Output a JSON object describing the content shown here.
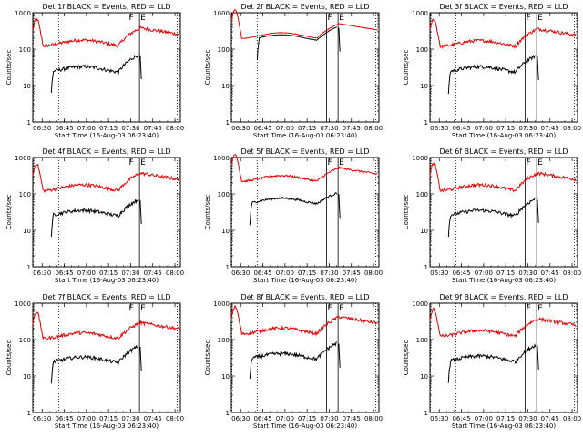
{
  "chart_data": {
    "type": "line",
    "layout": "3x3 grid",
    "ylabel": "Counts/sec",
    "xlabel": "Start Time (16-Aug-03 06:23:40)",
    "yscale": "log",
    "ylim": [
      1,
      1000
    ],
    "y_tick_labels": [
      "1",
      "10",
      "100",
      "1000"
    ],
    "x_tick_labels": [
      "06:30",
      "06:45",
      "07:00",
      "07:15",
      "07:30",
      "07:45",
      "08:00"
    ],
    "x_tick_minutes": [
      6.33,
      21.33,
      36.33,
      51.33,
      66.33,
      81.33,
      96.33
    ],
    "xlim_minutes": [
      0,
      100
    ],
    "time_range": [
      "06:23:40",
      "08:03:40"
    ],
    "legend": {
      "black": "Events",
      "red": "LLD"
    },
    "colors": {
      "events": "#000000",
      "lld": "#e00000",
      "axes": "#000000"
    },
    "markers": [
      {
        "label": "F",
        "minute": 64.5,
        "style": "solid"
      },
      {
        "label": "E",
        "minute": 72.3,
        "style": "solid"
      },
      {
        "label": "",
        "minute": 0.3,
        "style": "dotted"
      },
      {
        "label": "",
        "minute": 17.5,
        "style": "dotted"
      },
      {
        "label": "",
        "minute": 97.8,
        "style": "dotted"
      }
    ],
    "panels": [
      {
        "title": "Det 1f BLACK = Events, RED = LLD",
        "lld_base": 150,
        "events_base": 28,
        "lld_peak": 380,
        "events_peak": 75,
        "noise": 0.1,
        "smooth": false
      },
      {
        "title": "Det 2f BLACK = Events, RED = LLD",
        "lld_base": 240,
        "events_base": 210,
        "lld_peak": 500,
        "events_peak": 430,
        "noise": 0.02,
        "smooth": true
      },
      {
        "title": "Det 3f BLACK = Events, RED = LLD",
        "lld_base": 145,
        "events_base": 28,
        "lld_peak": 360,
        "events_peak": 70,
        "noise": 0.1,
        "smooth": false
      },
      {
        "title": "Det 4f BLACK = Events, RED = LLD",
        "lld_base": 150,
        "events_base": 30,
        "lld_peak": 370,
        "events_peak": 75,
        "noise": 0.1,
        "smooth": false
      },
      {
        "title": "Det 5f BLACK = Events, RED = LLD",
        "lld_base": 270,
        "events_base": 65,
        "lld_peak": 520,
        "events_peak": 110,
        "noise": 0.06,
        "smooth": false
      },
      {
        "title": "Det 6f BLACK = Events, RED = LLD",
        "lld_base": 150,
        "events_base": 30,
        "lld_peak": 370,
        "events_peak": 80,
        "noise": 0.1,
        "smooth": false
      },
      {
        "title": "Det 7f BLACK = Events, RED = LLD",
        "lld_base": 130,
        "events_base": 28,
        "lld_peak": 290,
        "events_peak": 70,
        "noise": 0.1,
        "smooth": false
      },
      {
        "title": "Det 8f BLACK = Events, RED = LLD",
        "lld_base": 175,
        "events_base": 35,
        "lld_peak": 420,
        "events_peak": 85,
        "noise": 0.1,
        "smooth": false
      },
      {
        "title": "Det 9f BLACK = Events, RED = LLD",
        "lld_base": 150,
        "events_base": 30,
        "lld_peak": 370,
        "events_peak": 75,
        "noise": 0.1,
        "smooth": false
      }
    ]
  }
}
